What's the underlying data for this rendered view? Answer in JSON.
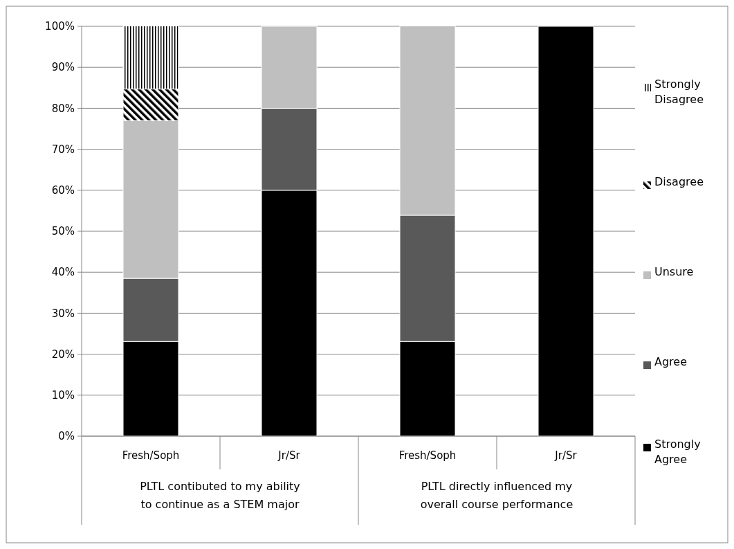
{
  "chart_data": {
    "type": "bar",
    "stacked": true,
    "categories": [
      "Fresh/Soph",
      "Jr/Sr",
      "Fresh/Soph",
      "Jr/Sr"
    ],
    "series": [
      {
        "name": "Strongly Agree",
        "color": "#000000",
        "values": [
          23.1,
          60,
          23.1,
          100
        ]
      },
      {
        "name": "Agree",
        "color": "#595959",
        "values": [
          15.4,
          20,
          30.8,
          0
        ]
      },
      {
        "name": "Unsure",
        "color": "#bfbfbf",
        "values": [
          38.5,
          20,
          46.2,
          0
        ]
      },
      {
        "name": "Disagree",
        "color": "#ffffff",
        "values": [
          7.7,
          0,
          0,
          0
        ]
      },
      {
        "name": "Strongly Disagree",
        "color": "#ffffff",
        "values": [
          15.4,
          0,
          0,
          0
        ]
      }
    ],
    "ylim": [
      0,
      100
    ],
    "yticks": [
      {
        "value": 0,
        "label": "0%"
      },
      {
        "value": 10,
        "label": "10%"
      },
      {
        "value": 20,
        "label": "20%"
      },
      {
        "value": 30,
        "label": "30%"
      },
      {
        "value": 40,
        "label": "40%"
      },
      {
        "value": 50,
        "label": "50%"
      },
      {
        "value": 60,
        "label": "60%"
      },
      {
        "value": 70,
        "label": "70%"
      },
      {
        "value": 80,
        "label": "80%"
      },
      {
        "value": 90,
        "label": "90%"
      },
      {
        "value": 100,
        "label": "100%"
      }
    ],
    "grid": "y",
    "legend": "right",
    "annotations": [
      "PLTL contibuted to my ability to continue as a STEM major",
      "PLTL directly influenced my overall course performance"
    ]
  }
}
